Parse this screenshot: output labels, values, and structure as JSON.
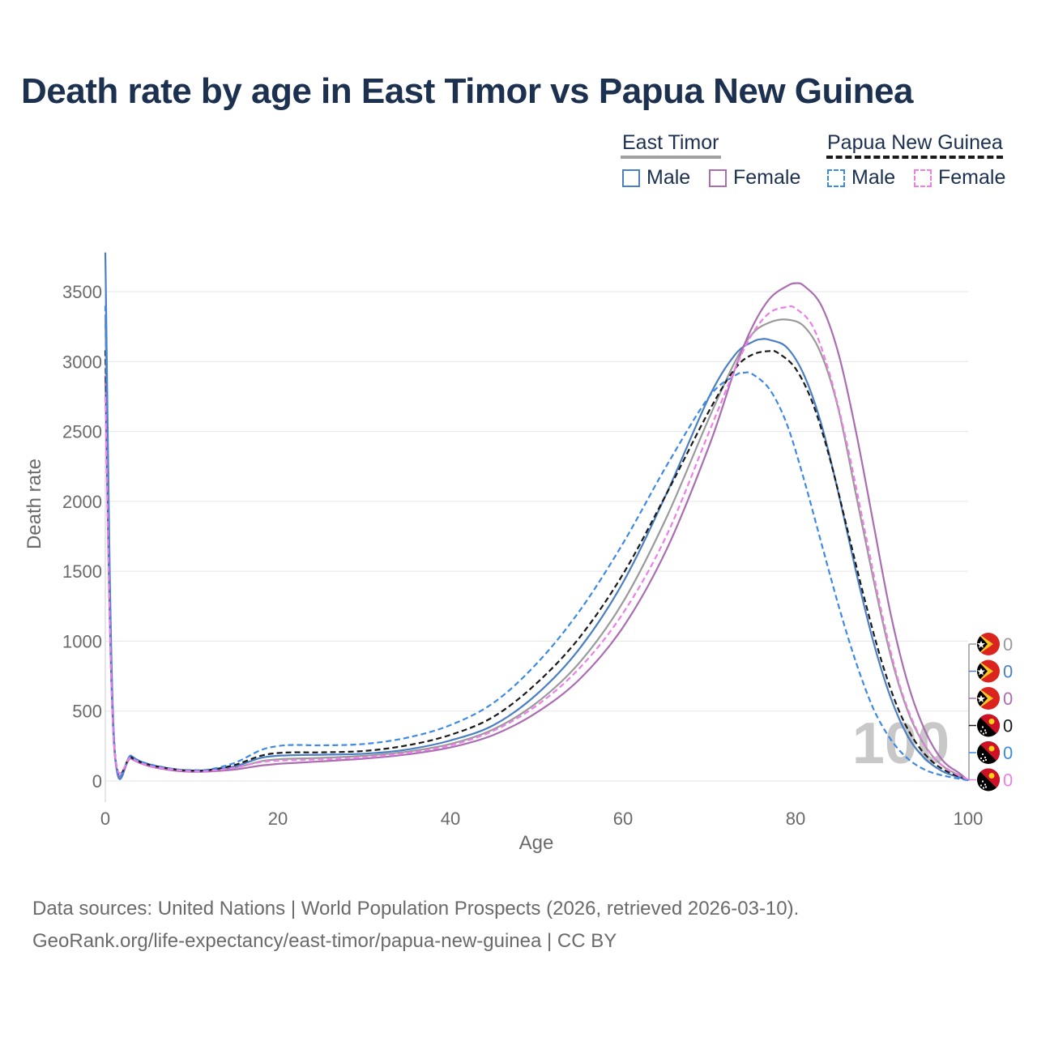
{
  "title": "Death rate by age in East Timor vs Papua New Guinea",
  "legend": {
    "groups": [
      {
        "label": "East Timor",
        "underline_color": "#a0a0a0",
        "underline_style": "solid",
        "items": [
          {
            "label": "Male",
            "color": "#4b7fc4",
            "style": "solid"
          },
          {
            "label": "Female",
            "color": "#aa6db2",
            "style": "solid"
          }
        ]
      },
      {
        "label": "Papua New Guinea",
        "underline_color": "#1a1a1a",
        "underline_style": "dashed",
        "items": [
          {
            "label": "Male",
            "color": "#3d8ae6",
            "style": "dashed"
          },
          {
            "label": "Female",
            "color": "#ee7fe6",
            "style": "dashed"
          }
        ]
      }
    ]
  },
  "chart_data": {
    "type": "line",
    "xlabel": "Age",
    "ylabel": "Death rate",
    "xlim": [
      0,
      100
    ],
    "ylim": [
      0,
      3800
    ],
    "x_ticks": [
      "0",
      "20",
      "40",
      "60",
      "80",
      "100"
    ],
    "y_ticks": [
      "0",
      "500",
      "1000",
      "1500",
      "2000",
      "2500",
      "3000",
      "3500"
    ],
    "grid": true,
    "watermark": "100",
    "series": [
      {
        "name": "East Timor Total",
        "color": "#9a9a9a",
        "style": "solid",
        "points": [
          [
            0,
            3300
          ],
          [
            1,
            280
          ],
          [
            3,
            170
          ],
          [
            5,
            115
          ],
          [
            8,
            80
          ],
          [
            10,
            72
          ],
          [
            12,
            74
          ],
          [
            15,
            95
          ],
          [
            18,
            140
          ],
          [
            20,
            155
          ],
          [
            22,
            160
          ],
          [
            25,
            165
          ],
          [
            30,
            180
          ],
          [
            35,
            210
          ],
          [
            40,
            265
          ],
          [
            45,
            370
          ],
          [
            50,
            560
          ],
          [
            55,
            850
          ],
          [
            60,
            1280
          ],
          [
            65,
            1880
          ],
          [
            70,
            2600
          ],
          [
            73,
            3000
          ],
          [
            75,
            3200
          ],
          [
            77,
            3280
          ],
          [
            79,
            3300
          ],
          [
            81,
            3250
          ],
          [
            83,
            3050
          ],
          [
            85,
            2650
          ],
          [
            87,
            2050
          ],
          [
            89,
            1450
          ],
          [
            91,
            900
          ],
          [
            93,
            500
          ],
          [
            95,
            250
          ],
          [
            97,
            110
          ],
          [
            99,
            40
          ],
          [
            100,
            5
          ]
        ]
      },
      {
        "name": "East Timor Male",
        "color": "#4b7fc4",
        "style": "solid",
        "points": [
          [
            0,
            3780
          ],
          [
            1,
            310
          ],
          [
            3,
            180
          ],
          [
            5,
            120
          ],
          [
            8,
            84
          ],
          [
            10,
            75
          ],
          [
            12,
            78
          ],
          [
            15,
            105
          ],
          [
            18,
            165
          ],
          [
            20,
            180
          ],
          [
            22,
            185
          ],
          [
            25,
            188
          ],
          [
            30,
            195
          ],
          [
            35,
            225
          ],
          [
            40,
            290
          ],
          [
            45,
            400
          ],
          [
            50,
            620
          ],
          [
            55,
            950
          ],
          [
            60,
            1420
          ],
          [
            65,
            2050
          ],
          [
            70,
            2750
          ],
          [
            73,
            3050
          ],
          [
            75,
            3140
          ],
          [
            76,
            3160
          ],
          [
            77,
            3155
          ],
          [
            79,
            3100
          ],
          [
            81,
            2900
          ],
          [
            83,
            2550
          ],
          [
            85,
            2050
          ],
          [
            87,
            1500
          ],
          [
            89,
            1000
          ],
          [
            91,
            600
          ],
          [
            93,
            320
          ],
          [
            95,
            160
          ],
          [
            97,
            70
          ],
          [
            99,
            25
          ],
          [
            100,
            5
          ]
        ]
      },
      {
        "name": "East Timor Female",
        "color": "#aa6db2",
        "style": "solid",
        "points": [
          [
            0,
            2900
          ],
          [
            1,
            260
          ],
          [
            3,
            160
          ],
          [
            5,
            108
          ],
          [
            8,
            74
          ],
          [
            10,
            66
          ],
          [
            12,
            68
          ],
          [
            15,
            82
          ],
          [
            18,
            110
          ],
          [
            20,
            122
          ],
          [
            22,
            130
          ],
          [
            25,
            140
          ],
          [
            30,
            160
          ],
          [
            35,
            190
          ],
          [
            40,
            240
          ],
          [
            45,
            330
          ],
          [
            50,
            490
          ],
          [
            55,
            730
          ],
          [
            60,
            1100
          ],
          [
            65,
            1650
          ],
          [
            70,
            2400
          ],
          [
            73,
            2950
          ],
          [
            75,
            3250
          ],
          [
            77,
            3450
          ],
          [
            79,
            3540
          ],
          [
            80,
            3560
          ],
          [
            81,
            3540
          ],
          [
            83,
            3400
          ],
          [
            85,
            3050
          ],
          [
            87,
            2500
          ],
          [
            89,
            1850
          ],
          [
            91,
            1200
          ],
          [
            93,
            700
          ],
          [
            95,
            360
          ],
          [
            97,
            150
          ],
          [
            99,
            55
          ],
          [
            100,
            5
          ]
        ]
      },
      {
        "name": "Papua New Guinea Total",
        "color": "#1a1a1a",
        "style": "dashed",
        "points": [
          [
            0,
            3080
          ],
          [
            1,
            290
          ],
          [
            3,
            170
          ],
          [
            5,
            118
          ],
          [
            8,
            84
          ],
          [
            10,
            74
          ],
          [
            12,
            78
          ],
          [
            15,
            115
          ],
          [
            18,
            180
          ],
          [
            20,
            200
          ],
          [
            22,
            205
          ],
          [
            25,
            205
          ],
          [
            30,
            215
          ],
          [
            35,
            255
          ],
          [
            40,
            330
          ],
          [
            45,
            460
          ],
          [
            50,
            700
          ],
          [
            55,
            1030
          ],
          [
            60,
            1480
          ],
          [
            65,
            2050
          ],
          [
            70,
            2650
          ],
          [
            73,
            2950
          ],
          [
            75,
            3050
          ],
          [
            77,
            3075
          ],
          [
            78,
            3060
          ],
          [
            80,
            2950
          ],
          [
            82,
            2700
          ],
          [
            84,
            2300
          ],
          [
            86,
            1800
          ],
          [
            88,
            1300
          ],
          [
            90,
            850
          ],
          [
            92,
            500
          ],
          [
            94,
            270
          ],
          [
            96,
            130
          ],
          [
            98,
            55
          ],
          [
            100,
            10
          ]
        ]
      },
      {
        "name": "Papua New Guinea Male",
        "color": "#3d8ae6",
        "style": "dashed",
        "points": [
          [
            0,
            3400
          ],
          [
            1,
            300
          ],
          [
            3,
            175
          ],
          [
            5,
            122
          ],
          [
            8,
            86
          ],
          [
            10,
            78
          ],
          [
            12,
            82
          ],
          [
            15,
            130
          ],
          [
            18,
            220
          ],
          [
            20,
            250
          ],
          [
            22,
            258
          ],
          [
            25,
            255
          ],
          [
            30,
            265
          ],
          [
            35,
            310
          ],
          [
            40,
            400
          ],
          [
            45,
            560
          ],
          [
            50,
            840
          ],
          [
            55,
            1220
          ],
          [
            60,
            1700
          ],
          [
            65,
            2250
          ],
          [
            70,
            2750
          ],
          [
            73,
            2900
          ],
          [
            74,
            2920
          ],
          [
            75,
            2910
          ],
          [
            77,
            2800
          ],
          [
            79,
            2550
          ],
          [
            81,
            2150
          ],
          [
            83,
            1700
          ],
          [
            85,
            1250
          ],
          [
            87,
            850
          ],
          [
            89,
            520
          ],
          [
            91,
            300
          ],
          [
            93,
            160
          ],
          [
            95,
            80
          ],
          [
            97,
            40
          ],
          [
            100,
            5
          ]
        ]
      },
      {
        "name": "Papua New Guinea Female",
        "color": "#ee7fe6",
        "style": "dashed",
        "points": [
          [
            0,
            2750
          ],
          [
            1,
            270
          ],
          [
            3,
            165
          ],
          [
            5,
            110
          ],
          [
            8,
            80
          ],
          [
            10,
            70
          ],
          [
            12,
            72
          ],
          [
            15,
            95
          ],
          [
            18,
            135
          ],
          [
            20,
            145
          ],
          [
            22,
            150
          ],
          [
            25,
            155
          ],
          [
            30,
            170
          ],
          [
            35,
            200
          ],
          [
            40,
            255
          ],
          [
            45,
            360
          ],
          [
            50,
            540
          ],
          [
            55,
            810
          ],
          [
            60,
            1200
          ],
          [
            65,
            1750
          ],
          [
            70,
            2500
          ],
          [
            73,
            2950
          ],
          [
            75,
            3200
          ],
          [
            77,
            3350
          ],
          [
            79,
            3390
          ],
          [
            80,
            3380
          ],
          [
            82,
            3250
          ],
          [
            84,
            2900
          ],
          [
            86,
            2400
          ],
          [
            88,
            1800
          ],
          [
            90,
            1200
          ],
          [
            92,
            700
          ],
          [
            94,
            370
          ],
          [
            96,
            170
          ],
          [
            98,
            70
          ],
          [
            100,
            10
          ]
        ]
      }
    ],
    "end_labels": [
      {
        "flag": "east-timor",
        "value": "0",
        "color": "#9a9a9a"
      },
      {
        "flag": "east-timor",
        "value": "0",
        "color": "#4b7fc4"
      },
      {
        "flag": "east-timor",
        "value": "0",
        "color": "#aa6db2"
      },
      {
        "flag": "papua-new-guinea",
        "value": "0",
        "color": "#1a1a1a"
      },
      {
        "flag": "papua-new-guinea",
        "value": "0",
        "color": "#3d8ae6"
      },
      {
        "flag": "papua-new-guinea",
        "value": "0",
        "color": "#ee7fe6"
      }
    ]
  },
  "source": {
    "line1": "Data sources: United Nations | World Population Prospects (2026, retrieved 2026-03-10).",
    "line2": "GeoRank.org/life-expectancy/east-timor/papua-new-guinea | CC BY"
  }
}
